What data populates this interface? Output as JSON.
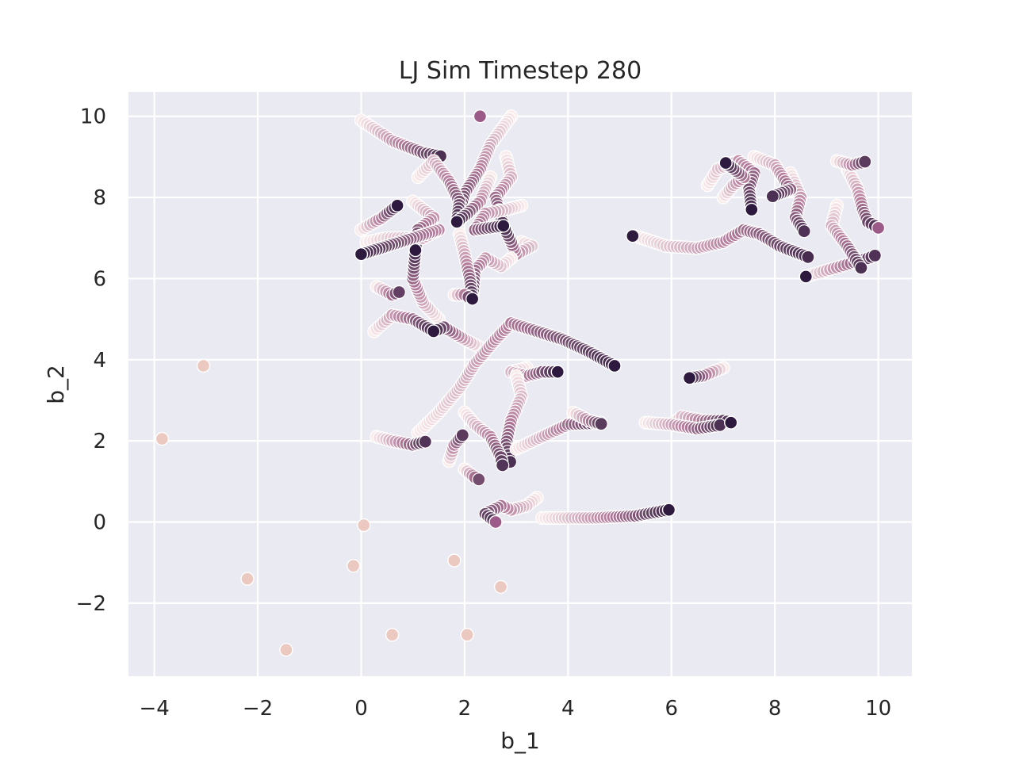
{
  "chart_data": {
    "type": "scatter",
    "title": "LJ Sim Timestep 280",
    "xlabel": "b_1",
    "ylabel": "b_2",
    "xlim": [
      -4.5,
      10.65
    ],
    "ylim": [
      -3.8,
      10.6
    ],
    "xticks": [
      -4,
      -2,
      0,
      2,
      4,
      6,
      8,
      10
    ],
    "xtick_labels": [
      "−4",
      "−2",
      "0",
      "2",
      "4",
      "6",
      "8",
      "10"
    ],
    "yticks": [
      -2,
      0,
      2,
      4,
      6,
      8,
      10
    ],
    "ytick_labels": [
      "−2",
      "0",
      "2",
      "4",
      "6",
      "8",
      "10"
    ],
    "grid": true,
    "legend": "none",
    "colors": {
      "background": "#eaeaf2",
      "grid": "#ffffff",
      "oldest": "#fbecec",
      "mid": "#b47a9a",
      "newest": "#2d1a3e"
    },
    "trajectories": [
      {
        "points": [
          [
            0.0,
            9.9
          ],
          [
            0.6,
            9.4
          ],
          [
            1.2,
            9.1
          ],
          [
            1.6,
            9.0
          ]
        ]
      },
      {
        "points": [
          [
            2.9,
            10.0
          ],
          [
            2.5,
            9.3
          ],
          [
            2.3,
            8.7
          ],
          [
            2.0,
            8.1
          ],
          [
            1.85,
            7.4
          ]
        ]
      },
      {
        "points": [
          [
            1.1,
            8.5
          ],
          [
            1.4,
            8.9
          ],
          [
            1.7,
            8.4
          ],
          [
            1.9,
            7.9
          ],
          [
            1.85,
            7.4
          ]
        ]
      },
      {
        "points": [
          [
            2.5,
            8.5
          ],
          [
            2.3,
            7.9
          ],
          [
            2.05,
            7.6
          ],
          [
            1.85,
            7.4
          ]
        ]
      },
      {
        "points": [
          [
            2.8,
            9.0
          ],
          [
            2.9,
            8.5
          ],
          [
            2.6,
            8.0
          ],
          [
            2.75,
            7.3
          ]
        ]
      },
      {
        "points": [
          [
            3.1,
            6.9
          ],
          [
            3.3,
            6.8
          ],
          [
            3.0,
            6.6
          ],
          [
            2.9,
            6.9
          ],
          [
            2.75,
            7.3
          ]
        ]
      },
      {
        "points": [
          [
            3.1,
            7.8
          ],
          [
            2.8,
            7.7
          ],
          [
            2.4,
            7.6
          ],
          [
            2.2,
            7.2
          ],
          [
            2.75,
            7.3
          ]
        ]
      },
      {
        "points": [
          [
            0.0,
            7.2
          ],
          [
            0.4,
            7.5
          ],
          [
            0.7,
            7.8
          ]
        ]
      },
      {
        "points": [
          [
            1.0,
            7.9
          ],
          [
            1.4,
            7.5
          ],
          [
            1.1,
            7.2
          ],
          [
            1.05,
            6.7
          ]
        ]
      },
      {
        "points": [
          [
            1.5,
            5.0
          ],
          [
            1.2,
            5.4
          ],
          [
            1.0,
            6.0
          ],
          [
            1.05,
            6.7
          ]
        ]
      },
      {
        "points": [
          [
            0.1,
            6.9
          ],
          [
            0.5,
            7.0
          ],
          [
            0.9,
            7.0
          ],
          [
            1.2,
            7.0
          ],
          [
            1.5,
            7.2
          ],
          [
            0.0,
            6.6
          ]
        ]
      },
      {
        "points": [
          [
            2.9,
            6.5
          ],
          [
            2.7,
            6.3
          ],
          [
            2.4,
            6.5
          ],
          [
            2.2,
            6.2
          ],
          [
            2.15,
            5.5
          ]
        ]
      },
      {
        "points": [
          [
            1.9,
            7.1
          ],
          [
            2.0,
            6.6
          ],
          [
            2.1,
            6.0
          ],
          [
            2.15,
            5.5
          ]
        ]
      },
      {
        "points": [
          [
            1.8,
            5.6
          ],
          [
            2.0,
            5.6
          ],
          [
            2.15,
            5.5
          ]
        ]
      },
      {
        "points": [
          [
            0.3,
            5.8
          ],
          [
            0.6,
            5.6
          ],
          [
            0.8,
            5.7
          ]
        ]
      },
      {
        "points": [
          [
            2.3,
            4.3
          ],
          [
            2.0,
            4.5
          ],
          [
            1.6,
            4.8
          ],
          [
            1.4,
            4.7
          ]
        ]
      },
      {
        "points": [
          [
            0.25,
            4.7
          ],
          [
            0.6,
            5.1
          ],
          [
            1.0,
            5.0
          ],
          [
            1.4,
            4.7
          ]
        ]
      },
      {
        "points": [
          [
            1.1,
            2.2
          ],
          [
            1.5,
            2.7
          ],
          [
            1.9,
            3.3
          ],
          [
            2.2,
            3.9
          ],
          [
            2.6,
            4.5
          ],
          [
            2.9,
            4.9
          ],
          [
            3.4,
            4.7
          ],
          [
            3.9,
            4.5
          ],
          [
            4.4,
            4.2
          ],
          [
            4.9,
            3.85
          ]
        ]
      },
      {
        "points": [
          [
            3.2,
            3.8
          ],
          [
            2.9,
            3.7
          ],
          [
            3.2,
            3.6
          ],
          [
            3.5,
            3.7
          ],
          [
            3.8,
            3.7
          ]
        ]
      },
      {
        "points": [
          [
            3.0,
            3.6
          ],
          [
            3.1,
            3.1
          ],
          [
            2.9,
            2.5
          ],
          [
            2.8,
            1.9
          ],
          [
            2.9,
            1.4
          ]
        ]
      },
      {
        "points": [
          [
            2.0,
            2.7
          ],
          [
            2.2,
            2.4
          ],
          [
            2.5,
            2.1
          ],
          [
            2.7,
            1.6
          ],
          [
            2.75,
            1.3
          ]
        ]
      },
      {
        "points": [
          [
            1.7,
            1.5
          ],
          [
            1.8,
            1.9
          ],
          [
            2.0,
            2.2
          ]
        ]
      },
      {
        "points": [
          [
            2.0,
            1.3
          ],
          [
            2.2,
            1.1
          ],
          [
            2.35,
            1.0
          ]
        ]
      },
      {
        "points": [
          [
            0.3,
            2.1
          ],
          [
            0.6,
            2.0
          ],
          [
            1.0,
            1.9
          ],
          [
            1.3,
            2.0
          ]
        ]
      },
      {
        "points": [
          [
            3.0,
            1.8
          ],
          [
            3.5,
            2.1
          ],
          [
            4.0,
            2.4
          ],
          [
            4.7,
            2.45
          ]
        ]
      },
      {
        "points": [
          [
            4.1,
            2.7
          ],
          [
            4.4,
            2.5
          ],
          [
            4.7,
            2.4
          ]
        ]
      },
      {
        "points": [
          [
            6.0,
            2.4
          ],
          [
            6.2,
            2.6
          ],
          [
            6.6,
            2.5
          ],
          [
            7.0,
            2.5
          ],
          [
            7.15,
            2.45
          ]
        ]
      },
      {
        "points": [
          [
            5.5,
            2.45
          ],
          [
            6.0,
            2.4
          ],
          [
            6.5,
            2.3
          ],
          [
            7.0,
            2.4
          ]
        ]
      },
      {
        "points": [
          [
            7.0,
            3.8
          ],
          [
            6.8,
            3.7
          ],
          [
            6.6,
            3.6
          ],
          [
            6.35,
            3.55
          ]
        ]
      },
      {
        "points": [
          [
            3.5,
            0.1
          ],
          [
            4.5,
            0.1
          ],
          [
            5.3,
            0.15
          ],
          [
            5.95,
            0.3
          ]
        ]
      },
      {
        "points": [
          [
            3.4,
            0.6
          ],
          [
            3.2,
            0.4
          ],
          [
            2.9,
            0.3
          ],
          [
            2.7,
            0.4
          ],
          [
            2.4,
            0.2
          ],
          [
            2.6,
            0.0
          ]
        ]
      },
      {
        "points": [
          [
            5.3,
            7.05
          ],
          [
            5.9,
            6.8
          ],
          [
            6.5,
            6.75
          ],
          [
            7.0,
            6.9
          ],
          [
            7.4,
            7.2
          ],
          [
            7.7,
            7.1
          ],
          [
            8.1,
            6.8
          ],
          [
            8.7,
            6.5
          ]
        ]
      },
      {
        "points": [
          [
            8.6,
            6.05
          ],
          [
            9.0,
            6.2
          ],
          [
            9.4,
            6.35
          ],
          [
            9.8,
            6.5
          ],
          [
            10.0,
            6.6
          ]
        ]
      },
      {
        "points": [
          [
            9.4,
            8.7
          ],
          [
            9.6,
            8.2
          ],
          [
            9.7,
            7.7
          ],
          [
            9.8,
            7.4
          ],
          [
            10.0,
            7.25
          ]
        ]
      },
      {
        "points": [
          [
            9.2,
            7.8
          ],
          [
            9.1,
            7.3
          ],
          [
            9.4,
            6.8
          ],
          [
            9.7,
            6.2
          ]
        ]
      },
      {
        "points": [
          [
            8.3,
            8.6
          ],
          [
            8.5,
            8.0
          ],
          [
            8.4,
            7.5
          ],
          [
            8.6,
            7.1
          ]
        ]
      },
      {
        "points": [
          [
            6.7,
            8.3
          ],
          [
            6.9,
            8.7
          ],
          [
            7.3,
            8.9
          ],
          [
            7.6,
            8.6
          ],
          [
            7.5,
            8.2
          ],
          [
            7.55,
            7.7
          ]
        ]
      },
      {
        "points": [
          [
            7.0,
            8.0
          ],
          [
            7.2,
            8.3
          ],
          [
            7.4,
            8.5
          ],
          [
            7.05,
            8.85
          ]
        ]
      },
      {
        "points": [
          [
            7.6,
            9.0
          ],
          [
            8.0,
            8.8
          ],
          [
            8.3,
            8.2
          ],
          [
            7.9,
            8.0
          ]
        ]
      },
      {
        "points": [
          [
            9.2,
            8.9
          ],
          [
            9.5,
            8.8
          ],
          [
            9.8,
            8.9
          ]
        ]
      }
    ],
    "scattered_points": [
      {
        "x": -3.85,
        "y": 2.05
      },
      {
        "x": -3.05,
        "y": 3.85
      },
      {
        "x": -2.2,
        "y": -1.4
      },
      {
        "x": -1.45,
        "y": -3.15
      },
      {
        "x": -0.15,
        "y": -1.08
      },
      {
        "x": 0.05,
        "y": -0.08
      },
      {
        "x": 0.6,
        "y": -2.78
      },
      {
        "x": 1.8,
        "y": -0.95
      },
      {
        "x": 2.05,
        "y": -2.78
      },
      {
        "x": 2.7,
        "y": -1.6
      }
    ],
    "current_points": [
      {
        "x": 0.0,
        "y": 6.6,
        "tone": "newest"
      },
      {
        "x": 0.7,
        "y": 7.8,
        "tone": "newest"
      },
      {
        "x": 1.05,
        "y": 6.7,
        "tone": "newest"
      },
      {
        "x": 1.85,
        "y": 7.4,
        "tone": "newest"
      },
      {
        "x": 2.75,
        "y": 7.3,
        "tone": "newest"
      },
      {
        "x": 2.15,
        "y": 5.5,
        "tone": "newest"
      },
      {
        "x": 1.4,
        "y": 4.7,
        "tone": "newest"
      },
      {
        "x": 3.8,
        "y": 3.7,
        "tone": "newest"
      },
      {
        "x": 4.9,
        "y": 3.85,
        "tone": "newest"
      },
      {
        "x": 6.35,
        "y": 3.55,
        "tone": "newest"
      },
      {
        "x": 7.15,
        "y": 2.45,
        "tone": "newest"
      },
      {
        "x": 5.95,
        "y": 0.3,
        "tone": "newest"
      },
      {
        "x": 5.25,
        "y": 7.05,
        "tone": "newest"
      },
      {
        "x": 7.05,
        "y": 8.85,
        "tone": "newest"
      },
      {
        "x": 7.55,
        "y": 7.7,
        "tone": "newest"
      },
      {
        "x": 8.6,
        "y": 6.05,
        "tone": "newest"
      },
      {
        "x": 2.3,
        "y": 10.0,
        "tone": "mid"
      },
      {
        "x": 10.0,
        "y": 7.25,
        "tone": "mid"
      },
      {
        "x": 2.6,
        "y": 0.0,
        "tone": "mid"
      }
    ]
  }
}
